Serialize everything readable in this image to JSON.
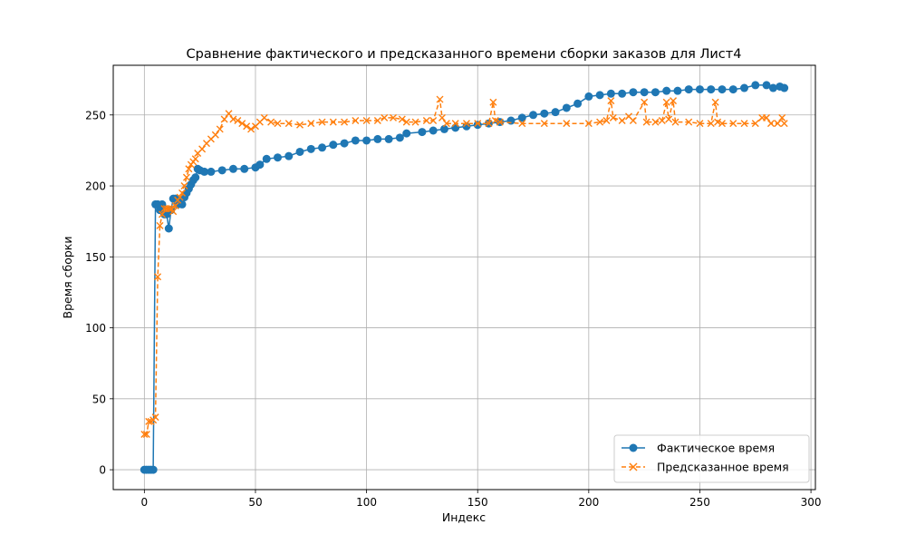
{
  "chart_data": {
    "type": "line",
    "title": "Сравнение фактического и предсказанного времени сборки заказов для Лист4",
    "xlabel": "Индекс",
    "ylabel": "Время сборки",
    "xlim": [
      -14,
      302
    ],
    "ylim": [
      -14,
      285
    ],
    "xticks": [
      0,
      50,
      100,
      150,
      200,
      250,
      300
    ],
    "yticks": [
      0,
      50,
      100,
      150,
      200,
      250
    ],
    "grid": true,
    "legend_position": "bottom-right",
    "series": [
      {
        "name": "Фактическое время",
        "color": "#1f77b4",
        "marker": "circle",
        "linestyle": "solid",
        "points": [
          [
            0,
            0
          ],
          [
            1,
            0
          ],
          [
            2,
            0
          ],
          [
            3,
            0
          ],
          [
            4,
            0
          ],
          [
            5,
            187
          ],
          [
            6,
            187
          ],
          [
            7,
            183
          ],
          [
            8,
            187
          ],
          [
            9,
            180
          ],
          [
            10,
            180
          ],
          [
            11,
            170
          ],
          [
            12,
            183
          ],
          [
            13,
            191
          ],
          [
            14,
            191
          ],
          [
            15,
            187
          ],
          [
            16,
            190
          ],
          [
            17,
            187
          ],
          [
            18,
            192
          ],
          [
            19,
            195
          ],
          [
            20,
            198
          ],
          [
            21,
            201
          ],
          [
            22,
            204
          ],
          [
            23,
            206
          ],
          [
            24,
            212
          ],
          [
            25,
            211
          ],
          [
            27,
            210
          ],
          [
            30,
            210
          ],
          [
            35,
            211
          ],
          [
            40,
            212
          ],
          [
            45,
            212
          ],
          [
            50,
            213
          ],
          [
            52,
            215
          ],
          [
            55,
            219
          ],
          [
            60,
            220
          ],
          [
            65,
            221
          ],
          [
            70,
            224
          ],
          [
            75,
            226
          ],
          [
            80,
            227
          ],
          [
            85,
            229
          ],
          [
            90,
            230
          ],
          [
            95,
            232
          ],
          [
            100,
            232
          ],
          [
            105,
            233
          ],
          [
            110,
            233
          ],
          [
            115,
            234
          ],
          [
            118,
            237
          ],
          [
            125,
            238
          ],
          [
            130,
            239
          ],
          [
            135,
            240
          ],
          [
            140,
            241
          ],
          [
            145,
            242
          ],
          [
            150,
            243
          ],
          [
            155,
            244
          ],
          [
            160,
            245
          ],
          [
            165,
            246
          ],
          [
            170,
            248
          ],
          [
            175,
            250
          ],
          [
            180,
            251
          ],
          [
            185,
            252
          ],
          [
            190,
            255
          ],
          [
            195,
            258
          ],
          [
            200,
            263
          ],
          [
            205,
            264
          ],
          [
            210,
            265
          ],
          [
            215,
            265
          ],
          [
            220,
            266
          ],
          [
            225,
            266
          ],
          [
            230,
            266
          ],
          [
            235,
            267
          ],
          [
            240,
            267
          ],
          [
            245,
            268
          ],
          [
            250,
            268
          ],
          [
            255,
            268
          ],
          [
            260,
            268
          ],
          [
            265,
            268
          ],
          [
            270,
            269
          ],
          [
            275,
            271
          ],
          [
            280,
            271
          ],
          [
            283,
            269
          ],
          [
            286,
            270
          ],
          [
            288,
            269
          ]
        ]
      },
      {
        "name": "Предсказанное время",
        "color": "#ff7f0e",
        "marker": "x",
        "linestyle": "dashed",
        "points": [
          [
            0,
            25
          ],
          [
            1,
            25
          ],
          [
            2,
            34
          ],
          [
            3,
            34
          ],
          [
            4,
            35
          ],
          [
            5,
            37
          ],
          [
            6,
            136
          ],
          [
            7,
            172
          ],
          [
            8,
            180
          ],
          [
            9,
            184
          ],
          [
            10,
            184
          ],
          [
            11,
            184
          ],
          [
            12,
            184
          ],
          [
            13,
            182
          ],
          [
            14,
            186
          ],
          [
            15,
            190
          ],
          [
            16,
            192
          ],
          [
            17,
            195
          ],
          [
            18,
            200
          ],
          [
            19,
            206
          ],
          [
            20,
            212
          ],
          [
            21,
            215
          ],
          [
            22,
            217
          ],
          [
            23,
            219
          ],
          [
            24,
            223
          ],
          [
            26,
            226
          ],
          [
            28,
            230
          ],
          [
            30,
            233
          ],
          [
            32,
            236
          ],
          [
            34,
            240
          ],
          [
            36,
            247
          ],
          [
            38,
            251
          ],
          [
            40,
            247
          ],
          [
            42,
            246
          ],
          [
            44,
            244
          ],
          [
            46,
            242
          ],
          [
            48,
            240
          ],
          [
            50,
            242
          ],
          [
            52,
            245
          ],
          [
            54,
            248
          ],
          [
            57,
            245
          ],
          [
            60,
            244
          ],
          [
            65,
            244
          ],
          [
            70,
            243
          ],
          [
            75,
            244
          ],
          [
            80,
            245
          ],
          [
            85,
            245
          ],
          [
            90,
            245
          ],
          [
            95,
            246
          ],
          [
            100,
            246
          ],
          [
            105,
            246
          ],
          [
            108,
            248
          ],
          [
            112,
            248
          ],
          [
            116,
            247
          ],
          [
            118,
            245
          ],
          [
            122,
            245
          ],
          [
            127,
            246
          ],
          [
            130,
            246
          ],
          [
            133,
            261
          ],
          [
            134,
            248
          ],
          [
            136,
            244
          ],
          [
            140,
            244
          ],
          [
            145,
            244
          ],
          [
            150,
            244
          ],
          [
            155,
            244
          ],
          [
            157,
            259
          ],
          [
            158,
            246
          ],
          [
            160,
            245
          ],
          [
            170,
            244
          ],
          [
            180,
            244
          ],
          [
            190,
            244
          ],
          [
            200,
            244
          ],
          [
            205,
            245
          ],
          [
            208,
            246
          ],
          [
            210,
            260
          ],
          [
            211,
            248
          ],
          [
            215,
            246
          ],
          [
            218,
            249
          ],
          [
            220,
            246
          ],
          [
            225,
            259
          ],
          [
            226,
            245
          ],
          [
            230,
            245
          ],
          [
            233,
            246
          ],
          [
            235,
            259
          ],
          [
            236,
            247
          ],
          [
            238,
            260
          ],
          [
            239,
            245
          ],
          [
            245,
            245
          ],
          [
            250,
            244
          ],
          [
            255,
            244
          ],
          [
            257,
            259
          ],
          [
            258,
            245
          ],
          [
            260,
            244
          ],
          [
            265,
            244
          ],
          [
            270,
            244
          ],
          [
            275,
            244
          ],
          [
            278,
            248
          ],
          [
            280,
            248
          ],
          [
            282,
            244
          ],
          [
            285,
            244
          ],
          [
            287,
            248
          ],
          [
            288,
            244
          ]
        ]
      }
    ]
  }
}
